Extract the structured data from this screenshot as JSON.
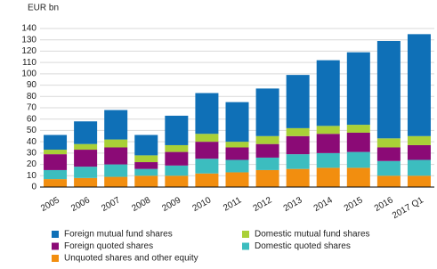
{
  "chart_data": {
    "type": "stacked_bar",
    "y_label": "EUR bn",
    "categories": [
      "2005",
      "2006",
      "2007",
      "2008",
      "2009",
      "2010",
      "2011",
      "2012",
      "2013",
      "2014",
      "2015",
      "2016",
      "2017 Q1"
    ],
    "series": [
      {
        "name": "Unquoted shares and other equity",
        "color": "#f28e0f",
        "values": [
          7,
          8,
          9,
          10,
          10,
          12,
          13,
          15,
          16,
          17,
          17,
          10,
          10
        ]
      },
      {
        "name": "Domestic quoted shares",
        "color": "#3cbdbf",
        "values": [
          8,
          10,
          11,
          6,
          9,
          13,
          11,
          11,
          13,
          13,
          14,
          13,
          14
        ]
      },
      {
        "name": "Foreign quoted shares",
        "color": "#8b0a76",
        "values": [
          14,
          15,
          15,
          6,
          12,
          15,
          11,
          12,
          16,
          17,
          17,
          12,
          13
        ]
      },
      {
        "name": "Domestic mutual fund shares",
        "color": "#a9d037",
        "values": [
          4,
          5,
          7,
          6,
          6,
          7,
          5,
          7,
          7,
          7,
          7,
          8,
          8
        ]
      },
      {
        "name": "Foreign mutual fund shares",
        "color": "#0f70b7",
        "values": [
          13,
          20,
          26,
          18,
          26,
          36,
          35,
          42,
          47,
          58,
          64,
          86,
          90
        ]
      }
    ],
    "ylim": [
      0,
      140
    ],
    "yticks": [
      0,
      10,
      20,
      30,
      40,
      50,
      60,
      70,
      80,
      90,
      100,
      110,
      120,
      130,
      140
    ],
    "grid": true
  }
}
